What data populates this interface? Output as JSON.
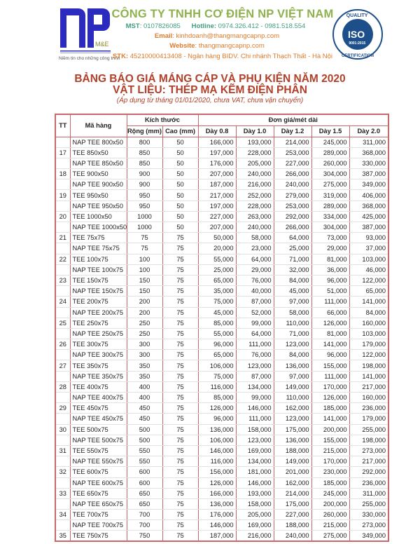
{
  "header": {
    "logo_text": "NP M&E",
    "logo_tagline": "Niềm tin cho những công trình",
    "company_name": "CÔNG TY TNHH CƠ ĐIỆN NP VIỆT NAM",
    "mst_label": "MST",
    "mst": ": 0107826085",
    "hotline_label": "Hotline:",
    "hotline": " 0974.326.412 - 0981.518.554",
    "email_label": "Email",
    "email": ": kinhdoanh@thangmangcapnp.com",
    "website_label": "Website",
    "website": ": thangmangcapnp.com",
    "stk_label": "STK:",
    "stk": " 45210000413408 - Ngân hàng BIDV. Chi nhánh Thạch Thất - Hà Nội",
    "iso_badge": "QUALITY ISO 9001:2015 CERTIFICATION"
  },
  "colors": {
    "brand_blue": "#2b2bbf",
    "company_green": "#8fb24e",
    "title_red": "#b0402a",
    "table_border": "#c9686a"
  },
  "title": {
    "line1": "BẢNG BÁO GIÁ MÁNG CÁP VÀ PHỤ KIỆN NĂM 2020",
    "line2": "VẬT LIỆU: THÉP MẠ KẼM ĐIỆN PHÂN",
    "note": "(Áp dụng từ tháng 01/01/2020, chưa VAT, chưa vận chuyển)"
  },
  "table": {
    "headers": {
      "tt": "TT",
      "code": "Mã hàng",
      "size": "Kích thước",
      "price": "Đơn giá/mét dài",
      "width": "Rộng (mm)",
      "height": "Cao (mm)",
      "d08": "Dày 0.8",
      "d10": "Dày 1.0",
      "d12": "Dày 1.2",
      "d15": "Dày 1.5",
      "d20": "Dày 2.0"
    },
    "rows": [
      [
        "",
        "NAP TEE 800x50",
        "800",
        "50",
        "166,000",
        "193,000",
        "214,000",
        "245,000",
        "311,000"
      ],
      [
        "17",
        "TEE 850x50",
        "850",
        "50",
        "197,000",
        "228,000",
        "253,000",
        "289,000",
        "368,000"
      ],
      [
        "",
        "NAP TEE 850x50",
        "850",
        "50",
        "176,000",
        "205,000",
        "227,000",
        "260,000",
        "330,000"
      ],
      [
        "18",
        "TEE 900x50",
        "900",
        "50",
        "207,000",
        "240,000",
        "266,000",
        "304,000",
        "387,000"
      ],
      [
        "",
        "NAP TEE 900x50",
        "900",
        "50",
        "187,000",
        "216,000",
        "240,000",
        "275,000",
        "349,000"
      ],
      [
        "19",
        "TEE 950x50",
        "950",
        "50",
        "217,000",
        "252,000",
        "279,000",
        "319,000",
        "406,000"
      ],
      [
        "",
        "NAP TEE 950x50",
        "950",
        "50",
        "197,000",
        "228,000",
        "253,000",
        "289,000",
        "368,000"
      ],
      [
        "20",
        "TEE 1000x50",
        "1000",
        "50",
        "227,000",
        "263,000",
        "292,000",
        "334,000",
        "425,000"
      ],
      [
        "",
        "NAP TEE 1000x50",
        "1000",
        "50",
        "207,000",
        "240,000",
        "266,000",
        "304,000",
        "387,000"
      ],
      [
        "21",
        "TEE 75x75",
        "75",
        "75",
        "50,000",
        "58,000",
        "64,000",
        "73,000",
        "93,000"
      ],
      [
        "",
        "NAP TEE 75x75",
        "75",
        "75",
        "20,000",
        "23,000",
        "25,000",
        "29,000",
        "37,000"
      ],
      [
        "22",
        "TEE 100x75",
        "100",
        "75",
        "55,000",
        "64,000",
        "71,000",
        "81,000",
        "103,000"
      ],
      [
        "",
        "NAP TEE 100x75",
        "100",
        "75",
        "25,000",
        "29,000",
        "32,000",
        "36,000",
        "46,000"
      ],
      [
        "23",
        "TEE 150x75",
        "150",
        "75",
        "65,000",
        "76,000",
        "84,000",
        "96,000",
        "122,000"
      ],
      [
        "",
        "NAP TEE 150x75",
        "150",
        "75",
        "35,000",
        "40,000",
        "45,000",
        "51,000",
        "65,000"
      ],
      [
        "24",
        "TEE 200x75",
        "200",
        "75",
        "75,000",
        "87,000",
        "97,000",
        "111,000",
        "141,000"
      ],
      [
        "",
        "NAP TEE 200x75",
        "200",
        "75",
        "45,000",
        "52,000",
        "58,000",
        "66,000",
        "84,000"
      ],
      [
        "25",
        "TEE 250x75",
        "250",
        "75",
        "85,000",
        "99,000",
        "110,000",
        "126,000",
        "160,000"
      ],
      [
        "",
        "NAP TEE 250x75",
        "250",
        "75",
        "55,000",
        "64,000",
        "71,000",
        "81,000",
        "103,000"
      ],
      [
        "26",
        "TEE 300x75",
        "300",
        "75",
        "96,000",
        "111,000",
        "123,000",
        "141,000",
        "179,000"
      ],
      [
        "",
        "NAP TEE 300x75",
        "300",
        "75",
        "65,000",
        "76,000",
        "84,000",
        "96,000",
        "122,000"
      ],
      [
        "27",
        "TEE 350x75",
        "350",
        "75",
        "106,000",
        "123,000",
        "136,000",
        "155,000",
        "198,000"
      ],
      [
        "",
        "NAP TEE 350x75",
        "350",
        "75",
        "75,000",
        "87,000",
        "97,000",
        "111,000",
        "141,000"
      ],
      [
        "28",
        "TEE 400x75",
        "400",
        "75",
        "116,000",
        "134,000",
        "149,000",
        "170,000",
        "217,000"
      ],
      [
        "",
        "NAP TEE 400x75",
        "400",
        "75",
        "85,000",
        "99,000",
        "110,000",
        "126,000",
        "160,000"
      ],
      [
        "29",
        "TEE 450x75",
        "450",
        "75",
        "126,000",
        "146,000",
        "162,000",
        "185,000",
        "236,000"
      ],
      [
        "",
        "NAP TEE 450x75",
        "450",
        "75",
        "96,000",
        "111,000",
        "123,000",
        "141,000",
        "179,000"
      ],
      [
        "30",
        "TEE 500x75",
        "500",
        "75",
        "136,000",
        "158,000",
        "175,000",
        "200,000",
        "255,000"
      ],
      [
        "",
        "NAP TEE 500x75",
        "500",
        "75",
        "106,000",
        "123,000",
        "136,000",
        "155,000",
        "198,000"
      ],
      [
        "31",
        "TEE 550x75",
        "550",
        "75",
        "146,000",
        "169,000",
        "188,000",
        "215,000",
        "273,000"
      ],
      [
        "",
        "NAP TEE 550x75",
        "550",
        "75",
        "116,000",
        "134,000",
        "149,000",
        "170,000",
        "217,000"
      ],
      [
        "32",
        "TEE 600x75",
        "600",
        "75",
        "156,000",
        "181,000",
        "201,000",
        "230,000",
        "292,000"
      ],
      [
        "",
        "NAP TEE 600x75",
        "600",
        "75",
        "126,000",
        "146,000",
        "162,000",
        "185,000",
        "236,000"
      ],
      [
        "33",
        "TEE 650x75",
        "650",
        "75",
        "166,000",
        "193,000",
        "214,000",
        "245,000",
        "311,000"
      ],
      [
        "",
        "NAP TEE 650x75",
        "650",
        "75",
        "136,000",
        "158,000",
        "175,000",
        "200,000",
        "255,000"
      ],
      [
        "34",
        "TEE 700x75",
        "700",
        "75",
        "176,000",
        "205,000",
        "227,000",
        "260,000",
        "330,000"
      ],
      [
        "",
        "NAP TEE 700x75",
        "700",
        "75",
        "146,000",
        "169,000",
        "188,000",
        "215,000",
        "273,000"
      ],
      [
        "35",
        "TEE 750x75",
        "750",
        "75",
        "187,000",
        "216,000",
        "240,000",
        "275,000",
        "349,000"
      ]
    ]
  }
}
